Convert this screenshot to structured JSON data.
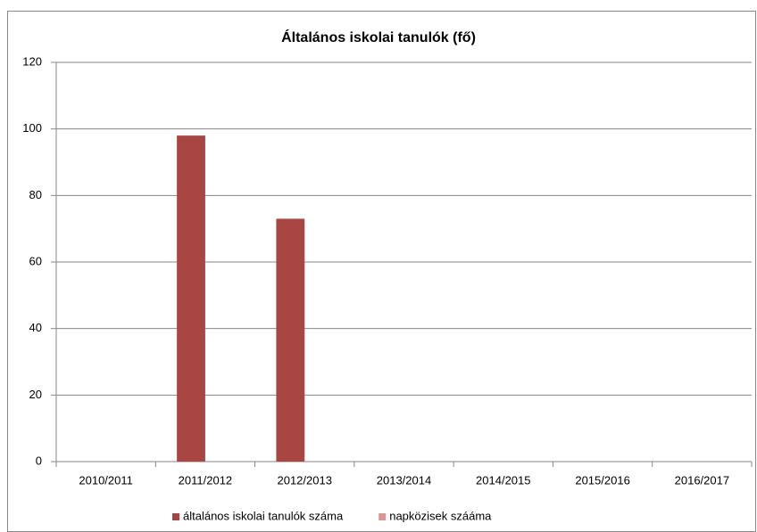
{
  "chart_data": {
    "type": "bar",
    "title": "Általános iskolai tanulók (fő)",
    "categories": [
      "2010/2011",
      "2011/2012",
      "2012/2013",
      "2013/2014",
      "2014/2015",
      "2015/2016",
      "2016/2017"
    ],
    "series": [
      {
        "name": "általános iskolai tanulók száma",
        "color": "#a84644",
        "values": [
          null,
          98,
          73,
          null,
          null,
          null,
          null
        ]
      },
      {
        "name": "napközisek szááma",
        "color": "#d99694",
        "values": [
          null,
          null,
          null,
          null,
          null,
          null,
          null
        ]
      }
    ],
    "ylim": [
      0,
      120
    ],
    "yticks": [
      0,
      20,
      40,
      60,
      80,
      100,
      120
    ],
    "grid": true,
    "legend": "bottom"
  }
}
